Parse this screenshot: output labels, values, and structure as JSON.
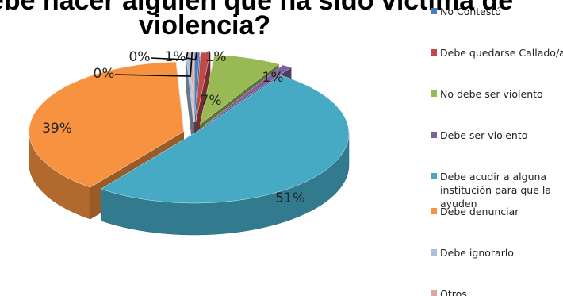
{
  "chart_data": {
    "type": "pie",
    "title_lines": [
      "¿Qué debe hacer alguien que ha sido víctima de",
      "violencia?"
    ],
    "legend_position": "right",
    "slices": [
      {
        "label": "No Contestó",
        "legend_lines": [
          "No Contestó"
        ],
        "value": 0.5,
        "pct_label": "1%",
        "color": "#4a7ebb"
      },
      {
        "label": "Debe quedarse Callado/a",
        "legend_lines": [
          "Debe quedarse Callado/a"
        ],
        "value": 1,
        "pct_label": "1%",
        "color": "#be4b48"
      },
      {
        "label": "No debe ser violento",
        "legend_lines": [
          "No debe ser violento"
        ],
        "value": 7,
        "pct_label": "7%",
        "color": "#98b954"
      },
      {
        "label": "Debe ser violento",
        "legend_lines": [
          "Debe ser violento"
        ],
        "value": 1,
        "pct_label": "1%",
        "color": "#7d60a0"
      },
      {
        "label": "Debe acudir a alguna institución para que la ayuden",
        "legend_lines": [
          "Debe acudir a alguna",
          "institución para que la",
          "ayuden"
        ],
        "value": 51,
        "pct_label": "51%",
        "color": "#46aac5"
      },
      {
        "label": "Debe denunciar",
        "legend_lines": [
          "Debe denunciar"
        ],
        "value": 39,
        "pct_label": "39%",
        "color": "#f69240"
      },
      {
        "label": "Debe ignorarlo",
        "legend_lines": [
          "Debe ignorarlo"
        ],
        "value": 0.4,
        "pct_label": "0%",
        "color": "#a7c0de"
      },
      {
        "label": "Otros",
        "legend_lines": [
          "Otros"
        ],
        "value": 0.4,
        "pct_label": "0%",
        "color": "#dea7a6"
      }
    ]
  }
}
